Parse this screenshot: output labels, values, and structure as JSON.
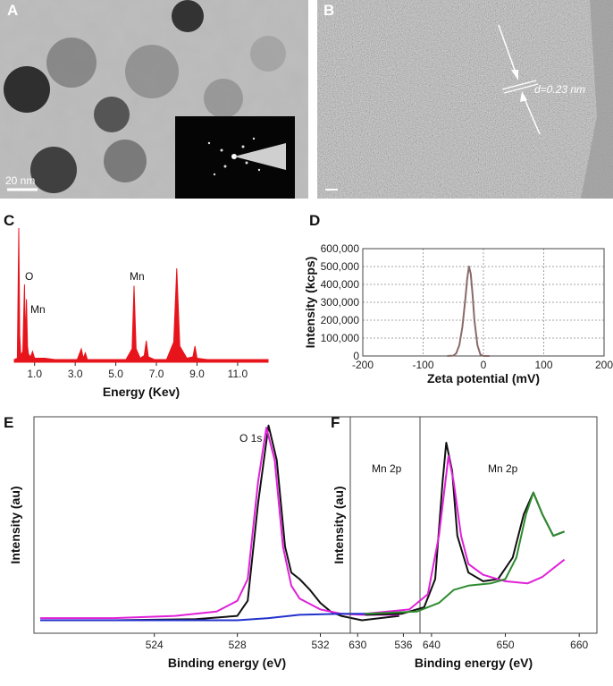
{
  "panels": [
    {
      "label": "A",
      "scale_bar": "20 nm"
    },
    {
      "label": "B",
      "annotation": "d=0.23 nm"
    }
  ],
  "chart_data": [
    {
      "panel": "C",
      "type": "area",
      "xlabel": "Energy (Kev)",
      "xlim": [
        0,
        12.5
      ],
      "ylim": [
        0,
        100
      ],
      "frame": false,
      "xticks": [
        {
          "value": 1,
          "label": "1.0"
        },
        {
          "value": 3,
          "label": "3.0"
        },
        {
          "value": 5,
          "label": "5.0"
        },
        {
          "value": 7,
          "label": "7.0"
        },
        {
          "value": 9,
          "label": "9.0"
        },
        {
          "value": 11,
          "label": "11.0"
        }
      ],
      "annotations": [
        "O",
        "Mn",
        "Mn"
      ],
      "series": [
        {
          "color": "#e8141c",
          "x": [
            0,
            0.15,
            0.22,
            0.27,
            0.32,
            0.42,
            0.5,
            0.55,
            0.6,
            0.65,
            0.7,
            0.8,
            0.9,
            1.0,
            1.5,
            2,
            2.5,
            3.1,
            3.3,
            3.4,
            3.5,
            3.6,
            3.8,
            4.5,
            5.5,
            5.8,
            5.9,
            6.0,
            6.2,
            6.4,
            6.5,
            6.6,
            6.9,
            7.5,
            7.85,
            8.0,
            8.15,
            8.5,
            8.8,
            8.9,
            9.0,
            9.5,
            10.5,
            12.5
          ],
          "values": [
            2,
            3,
            100,
            20,
            5,
            8,
            58,
            15,
            47,
            12,
            6,
            4,
            8,
            3,
            3,
            2,
            2,
            2,
            10,
            3,
            7,
            2,
            2,
            2,
            2,
            10,
            57,
            10,
            3,
            5,
            16,
            4,
            2,
            2,
            15,
            70,
            12,
            3,
            4,
            12,
            3,
            2,
            2,
            2
          ]
        }
      ]
    },
    {
      "panel": "D",
      "type": "line",
      "xlabel": "Zeta potential (mV)",
      "ylabel": "Intensity (kcps)",
      "xlim": [
        -200,
        200
      ],
      "ylim": [
        0,
        600000
      ],
      "frame": true,
      "grid": true,
      "xticks": [
        -200,
        -100,
        0,
        100,
        200
      ],
      "yticks": [
        0,
        {
          "value": 100000,
          "label": "100,000"
        },
        {
          "value": 200000,
          "label": "200,000"
        },
        {
          "value": 300000,
          "label": "300,000"
        },
        {
          "value": 400000,
          "label": "400,000"
        },
        {
          "value": 500000,
          "label": "500,000"
        },
        {
          "value": 600000,
          "label": "600,000"
        }
      ],
      "series": [
        {
          "color": "#8a6a6a",
          "x": [
            -60,
            -50,
            -45,
            -40,
            -35,
            -30,
            -27,
            -24,
            -21,
            -18,
            -15,
            -10,
            -5,
            0,
            10
          ],
          "values": [
            0,
            2000,
            15000,
            60000,
            160000,
            320000,
            430000,
            500000,
            460000,
            340000,
            200000,
            60000,
            8000,
            0,
            0
          ]
        }
      ]
    },
    {
      "panel": "E",
      "type": "line",
      "xlabel": "Binding energy (eV)",
      "ylabel": "Intensity (au)",
      "xlim": [
        518.2,
        536.8
      ],
      "ylim": [
        0,
        100
      ],
      "frame": true,
      "xticks": [
        524,
        528,
        532,
        536
      ],
      "annotations": [
        "O 1s"
      ],
      "series": [
        {
          "color": "#111111",
          "x": [
            518.5,
            522,
            526,
            528,
            528.5,
            529,
            529.5,
            529.9,
            530.3,
            530.6,
            531,
            531.5,
            532,
            532.5,
            533,
            534,
            535.8
          ],
          "values": [
            6,
            6,
            6.5,
            8,
            15,
            60,
            96,
            80,
            40,
            28,
            25,
            20,
            14,
            10,
            8,
            6,
            8
          ]
        },
        {
          "color": "#e020d8",
          "x": [
            518.5,
            522,
            525,
            527,
            528,
            528.5,
            529,
            529.4,
            529.8,
            530.2,
            530.6,
            531,
            532,
            533,
            534,
            535.8
          ],
          "values": [
            7,
            7,
            8,
            10,
            15,
            25,
            70,
            95,
            80,
            40,
            22,
            16,
            11,
            9,
            8.5,
            8.5
          ]
        },
        {
          "color": "#2233cc",
          "x": [
            518.5,
            524,
            528,
            529.5,
            531,
            533,
            535.8
          ],
          "values": [
            6,
            6,
            6,
            7,
            8.5,
            9,
            9
          ]
        }
      ]
    },
    {
      "panel": "F",
      "type": "line",
      "xlabel": "Binding energy (eV)",
      "ylabel": "Intensity (au)",
      "xlim": [
        629,
        662.4
      ],
      "ylim": [
        0,
        100
      ],
      "frame": true,
      "xticks": [
        630,
        640,
        650,
        660
      ],
      "annotations": [
        "Mn 2p",
        "Mn 2p"
      ],
      "series": [
        {
          "color": "#111111",
          "x": [
            631,
            636,
            639,
            640.5,
            641.5,
            642,
            642.8,
            643.5,
            645,
            647,
            649,
            651,
            652.5,
            653.8,
            655,
            656.5,
            658
          ],
          "values": [
            8.5,
            9,
            12,
            25,
            70,
            88,
            75,
            45,
            28,
            24,
            25,
            35,
            55,
            65,
            55,
            45,
            47
          ]
        },
        {
          "color": "#e020d8",
          "x": [
            631,
            637,
            639.5,
            641,
            642.3,
            643,
            644,
            645,
            647,
            650,
            653,
            655,
            656.5,
            658
          ],
          "values": [
            9,
            11,
            18,
            45,
            82,
            70,
            45,
            32,
            27,
            24,
            23,
            26,
            30,
            34
          ]
        },
        {
          "color": "#2e8b2e",
          "x": [
            631,
            638,
            641,
            643,
            645,
            648,
            650,
            651.5,
            652.8,
            653.8,
            655,
            656.5,
            658
          ],
          "values": [
            9,
            10,
            14,
            20,
            22,
            23,
            25,
            35,
            55,
            65,
            55,
            45,
            47
          ]
        }
      ]
    }
  ]
}
